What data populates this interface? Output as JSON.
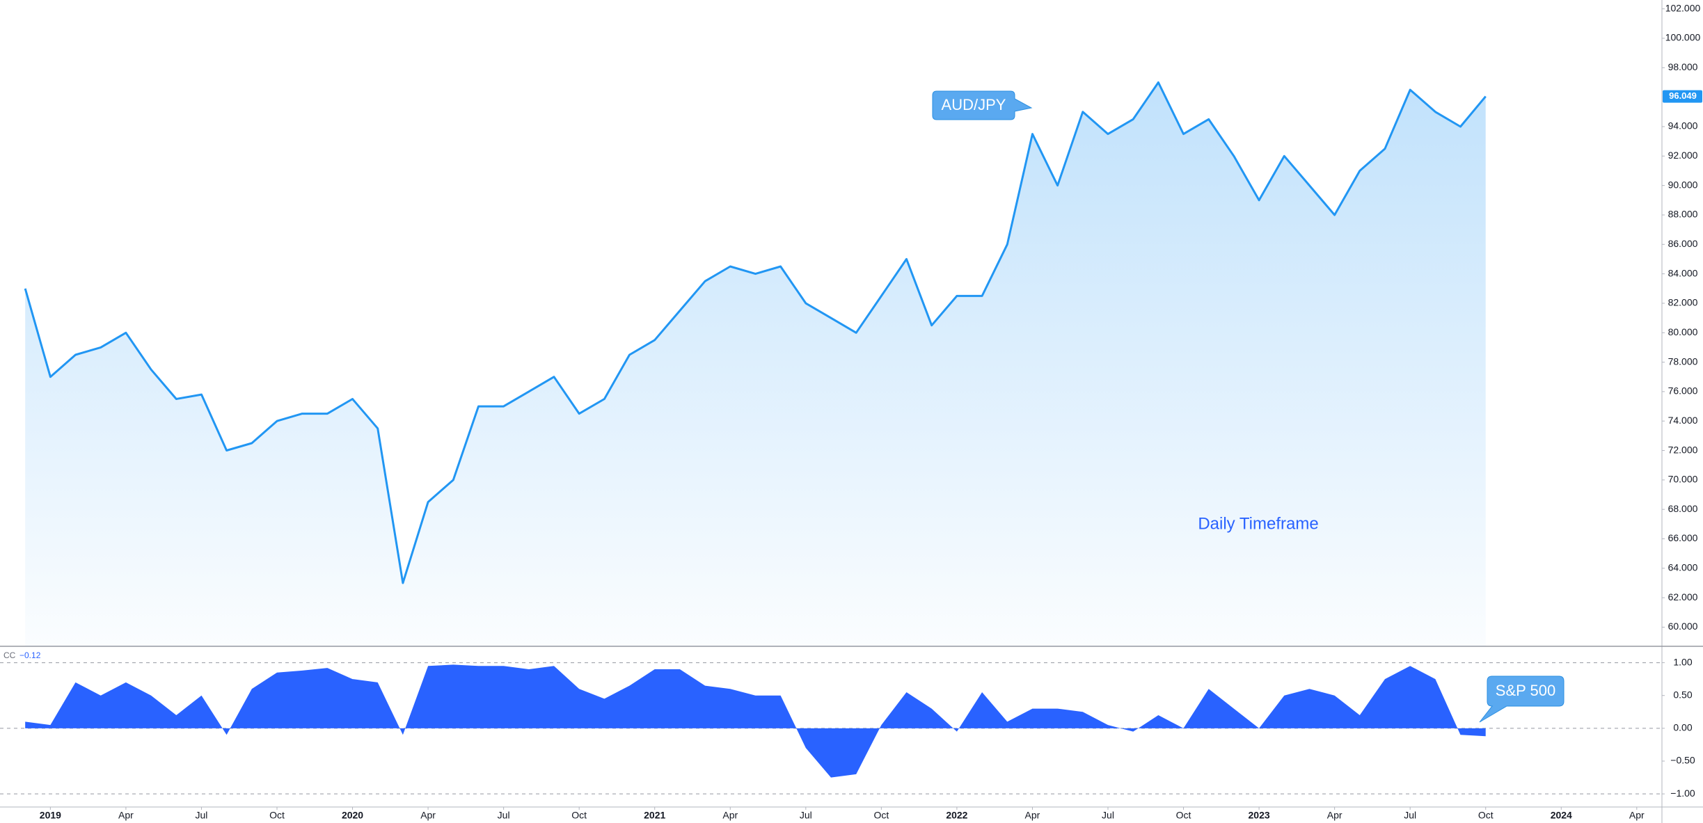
{
  "chart_data": [
    {
      "type": "area",
      "x": [
        "2018-12",
        "2019-01",
        "2019-02",
        "2019-03",
        "2019-04",
        "2019-05",
        "2019-06",
        "2019-07",
        "2019-08",
        "2019-09",
        "2019-10",
        "2019-11",
        "2019-12",
        "2020-01",
        "2020-02",
        "2020-03",
        "2020-04",
        "2020-05",
        "2020-06",
        "2020-07",
        "2020-08",
        "2020-09",
        "2020-10",
        "2020-11",
        "2020-12",
        "2021-01",
        "2021-02",
        "2021-03",
        "2021-04",
        "2021-05",
        "2021-06",
        "2021-07",
        "2021-08",
        "2021-09",
        "2021-10",
        "2021-11",
        "2021-12",
        "2022-01",
        "2022-02",
        "2022-03",
        "2022-04",
        "2022-05",
        "2022-06",
        "2022-07",
        "2022-08",
        "2022-09",
        "2022-10",
        "2022-11",
        "2022-12",
        "2023-01",
        "2023-02",
        "2023-03",
        "2023-04",
        "2023-05",
        "2023-06",
        "2023-07",
        "2023-08",
        "2023-09",
        "2023-10"
      ],
      "series": [
        {
          "name": "AUD/JPY",
          "color": "#2196f3",
          "values": [
            83,
            77,
            78.5,
            79,
            80,
            77.5,
            75.5,
            75.8,
            72,
            72.5,
            74,
            74.5,
            74.5,
            75.5,
            73.5,
            63,
            68.5,
            70,
            75,
            75,
            76,
            77,
            74.5,
            75.5,
            78.5,
            79.5,
            81.5,
            83.5,
            84.5,
            84,
            84.5,
            82,
            81,
            80,
            82.5,
            85,
            80.5,
            82.5,
            82.5,
            86,
            93.5,
            90,
            95,
            93.5,
            94.5,
            97,
            93.5,
            94.5,
            92,
            89,
            92,
            90,
            88,
            91,
            92.5,
            96.5,
            95,
            94,
            96.049
          ]
        }
      ],
      "last_value_label": "96.049",
      "annotation": "Daily Timeframe",
      "xlim": [
        "2018-11",
        "2024-05"
      ],
      "ylim": [
        58.7,
        102.6
      ],
      "yticks": [
        {
          "value": 60,
          "label": "60.000"
        },
        {
          "value": 62,
          "label": "62.000"
        },
        {
          "value": 64,
          "label": "64.000"
        },
        {
          "value": 66,
          "label": "66.000"
        },
        {
          "value": 68,
          "label": "68.000"
        },
        {
          "value": 70,
          "label": "70.000"
        },
        {
          "value": 72,
          "label": "72.000"
        },
        {
          "value": 74,
          "label": "74.000"
        },
        {
          "value": 76,
          "label": "76.000"
        },
        {
          "value": 78,
          "label": "78.000"
        },
        {
          "value": 80,
          "label": "80.000"
        },
        {
          "value": 82,
          "label": "82.000"
        },
        {
          "value": 84,
          "label": "84.000"
        },
        {
          "value": 86,
          "label": "86.000"
        },
        {
          "value": 88,
          "label": "88.000"
        },
        {
          "value": 90,
          "label": "90.000"
        },
        {
          "value": 92,
          "label": "92.000"
        },
        {
          "value": 94,
          "label": "94.000"
        },
        {
          "value": 98,
          "label": "98.000"
        },
        {
          "value": 100,
          "label": "100.000"
        },
        {
          "value": 102,
          "label": "102.000"
        }
      ]
    },
    {
      "type": "area",
      "indicator": "CC",
      "x": [
        "2018-12",
        "2019-01",
        "2019-02",
        "2019-03",
        "2019-04",
        "2019-05",
        "2019-06",
        "2019-07",
        "2019-08",
        "2019-09",
        "2019-10",
        "2019-11",
        "2019-12",
        "2020-01",
        "2020-02",
        "2020-03",
        "2020-04",
        "2020-05",
        "2020-06",
        "2020-07",
        "2020-08",
        "2020-09",
        "2020-10",
        "2020-11",
        "2020-12",
        "2021-01",
        "2021-02",
        "2021-03",
        "2021-04",
        "2021-05",
        "2021-06",
        "2021-07",
        "2021-08",
        "2021-09",
        "2021-10",
        "2021-11",
        "2021-12",
        "2022-01",
        "2022-02",
        "2022-03",
        "2022-04",
        "2022-05",
        "2022-06",
        "2022-07",
        "2022-08",
        "2022-09",
        "2022-10",
        "2022-11",
        "2022-12",
        "2023-01",
        "2023-02",
        "2023-03",
        "2023-04",
        "2023-05",
        "2023-06",
        "2023-07",
        "2023-08",
        "2023-09",
        "2023-10"
      ],
      "series": [
        {
          "name": "S&P 500",
          "color": "#2962ff",
          "values": [
            0.1,
            0.05,
            0.7,
            0.5,
            0.7,
            0.5,
            0.2,
            0.5,
            -0.1,
            0.6,
            0.85,
            0.88,
            0.92,
            0.75,
            0.7,
            -0.1,
            0.95,
            0.97,
            0.95,
            0.95,
            0.9,
            0.95,
            0.6,
            0.45,
            0.65,
            0.9,
            0.9,
            0.65,
            0.6,
            0.5,
            0.5,
            -0.3,
            -0.75,
            -0.7,
            0.05,
            0.55,
            0.3,
            -0.05,
            0.55,
            0.1,
            0.3,
            0.3,
            0.25,
            0.05,
            -0.05,
            0.2,
            0,
            0.6,
            0.3,
            0,
            0.5,
            0.6,
            0.5,
            0.2,
            0.75,
            0.95,
            0.75,
            -0.1,
            -0.12
          ]
        }
      ],
      "last_value_label": "−0.12",
      "xlim": [
        "2018-11",
        "2024-05"
      ],
      "ylim": [
        -1.2,
        1.25
      ],
      "yticks": [
        {
          "value": 1,
          "label": "1.00"
        },
        {
          "value": 0.5,
          "label": "0.50"
        },
        {
          "value": 0,
          "label": "0.00"
        },
        {
          "value": -0.5,
          "label": "−0.50"
        },
        {
          "value": -1,
          "label": "−1.00"
        }
      ],
      "hlines": [
        1,
        0,
        -1
      ],
      "xticks": [
        {
          "value": "2019-01",
          "label": "2019"
        },
        {
          "value": "2019-04",
          "label": "Apr"
        },
        {
          "value": "2019-07",
          "label": "Jul"
        },
        {
          "value": "2019-10",
          "label": "Oct"
        },
        {
          "value": "2020-01",
          "label": "2020"
        },
        {
          "value": "2020-04",
          "label": "Apr"
        },
        {
          "value": "2020-07",
          "label": "Jul"
        },
        {
          "value": "2020-10",
          "label": "Oct"
        },
        {
          "value": "2021-01",
          "label": "2021"
        },
        {
          "value": "2021-04",
          "label": "Apr"
        },
        {
          "value": "2021-07",
          "label": "Jul"
        },
        {
          "value": "2021-10",
          "label": "Oct"
        },
        {
          "value": "2022-01",
          "label": "2022"
        },
        {
          "value": "2022-04",
          "label": "Apr"
        },
        {
          "value": "2022-07",
          "label": "Jul"
        },
        {
          "value": "2022-10",
          "label": "Oct"
        },
        {
          "value": "2023-01",
          "label": "2023"
        },
        {
          "value": "2023-04",
          "label": "Apr"
        },
        {
          "value": "2023-07",
          "label": "Jul"
        },
        {
          "value": "2023-10",
          "label": "Oct"
        },
        {
          "value": "2024-01",
          "label": "2024"
        },
        {
          "value": "2024-04",
          "label": "Apr"
        }
      ]
    }
  ]
}
